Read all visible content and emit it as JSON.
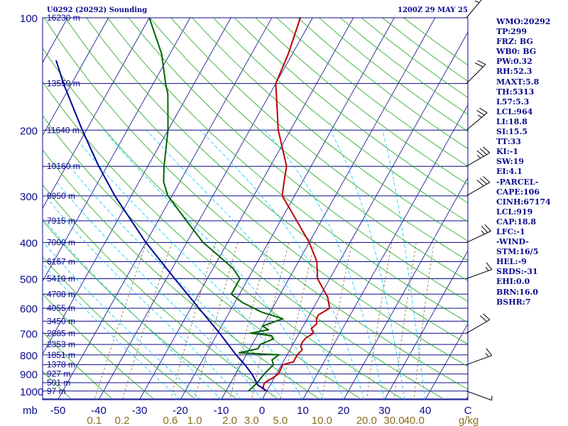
{
  "header": {
    "title": "U0292 (20292) Sounding",
    "time": "1200Z 29 MAY 25"
  },
  "stats": [
    "WMO:20292",
    "TP:299",
    "FRZ: BG",
    "WB0: BG",
    "PW:0.32",
    "RH:52.3",
    "MAXT:5.8",
    "TH:5313",
    "L57:5.3",
    "LCL:964",
    "LI:18.8",
    "SI:15.5",
    "TT:33",
    "KI:-1",
    "SW:19",
    "EI:4.1",
    "-PARCEL-",
    "CAPE:106",
    "CINH:67174",
    "LCL:919",
    "CAP:18.8",
    "LFC:-1",
    "-WIND-",
    "STM:16/5",
    "HEL:-9",
    "SRDS:-31",
    "EHI:0.0",
    "BRN:16.0",
    "BSHR:7"
  ],
  "chart_data": {
    "type": "line",
    "diagram": "skew-T log-P",
    "unit_label": "mb",
    "pressure_ticks": [
      100,
      200,
      300,
      400,
      500,
      600,
      700,
      800,
      900,
      1000
    ],
    "height_labels": [
      {
        "p": 100,
        "label": "16230 m"
      },
      {
        "p": 150,
        "label": "13550 m"
      },
      {
        "p": 200,
        "label": "11640 m"
      },
      {
        "p": 250,
        "label": "10160 m"
      },
      {
        "p": 300,
        "label": "8950 m"
      },
      {
        "p": 350,
        "label": "7915 m"
      },
      {
        "p": 400,
        "label": "7000 m"
      },
      {
        "p": 450,
        "label": "6167 m"
      },
      {
        "p": 500,
        "label": "5410 m"
      },
      {
        "p": 550,
        "label": "4708 m"
      },
      {
        "p": 600,
        "label": "4055 m"
      },
      {
        "p": 650,
        "label": "3450 m"
      },
      {
        "p": 700,
        "label": "2885 m"
      },
      {
        "p": 750,
        "label": "2353 m"
      },
      {
        "p": 800,
        "label": "1851 m"
      },
      {
        "p": 850,
        "label": "1378 m"
      },
      {
        "p": 900,
        "label": "927 m"
      },
      {
        "p": 950,
        "label": "501 m"
      },
      {
        "p": 1000,
        "label": "97 m"
      }
    ],
    "temp_ticks": [
      -50,
      -40,
      -30,
      -20,
      -10,
      0,
      10,
      20,
      30,
      40
    ],
    "mixing_ratio_ticks": [
      "0.1",
      "0.2",
      "0.6",
      "1.0",
      "2.0",
      "3.0",
      "5.0",
      "10.0",
      "20.0",
      "30.0",
      "40.0"
    ],
    "mixing_ratio_values": [
      0.1,
      0.2,
      0.6,
      1.0,
      2.0,
      3.0,
      5.0,
      10.0,
      20.0,
      30.0,
      40.0
    ],
    "x_end_label": "C",
    "mixing_ratio_unit": "g/kg",
    "series": [
      {
        "role": "temperature",
        "color": "#c00000",
        "points": [
          [
            1000,
            -0.5
          ],
          [
            975,
            -1.5
          ],
          [
            950,
            -1.7
          ],
          [
            925,
            -0.5
          ],
          [
            900,
            0.5
          ],
          [
            850,
            0.3
          ],
          [
            835,
            2.5
          ],
          [
            800,
            2.5
          ],
          [
            775,
            3.0
          ],
          [
            760,
            2.2
          ],
          [
            740,
            2.0
          ],
          [
            720,
            2.3
          ],
          [
            700,
            3.5
          ],
          [
            680,
            2.3
          ],
          [
            660,
            3.0
          ],
          [
            640,
            2.2
          ],
          [
            625,
            2.2
          ],
          [
            600,
            4.0
          ],
          [
            560,
            2.0
          ],
          [
            500,
            -3.0
          ],
          [
            450,
            -5.5
          ],
          [
            400,
            -10.0
          ],
          [
            350,
            -16.0
          ],
          [
            300,
            -23.0
          ],
          [
            275,
            -24.5
          ],
          [
            250,
            -26.0
          ],
          [
            200,
            -33.0
          ],
          [
            150,
            -40.0
          ],
          [
            125,
            -41.0
          ],
          [
            100,
            -43.0
          ]
        ]
      },
      {
        "role": "dewpoint",
        "color": "#006400",
        "points": [
          [
            1000,
            -4.5
          ],
          [
            950,
            -3.5
          ],
          [
            900,
            -3.0
          ],
          [
            850,
            -2.0
          ],
          [
            825,
            -3.0
          ],
          [
            800,
            -2.0
          ],
          [
            790,
            -12.0
          ],
          [
            770,
            -8.0
          ],
          [
            750,
            -8.0
          ],
          [
            725,
            -5.5
          ],
          [
            710,
            -6.5
          ],
          [
            700,
            -12.0
          ],
          [
            685,
            -8.0
          ],
          [
            670,
            -10.0
          ],
          [
            640,
            -6.0
          ],
          [
            615,
            -12.0
          ],
          [
            580,
            -18.0
          ],
          [
            550,
            -22.0
          ],
          [
            500,
            -22.0
          ],
          [
            470,
            -25.0
          ],
          [
            430,
            -31.0
          ],
          [
            400,
            -36.0
          ],
          [
            350,
            -43.0
          ],
          [
            300,
            -51.0
          ],
          [
            275,
            -54.0
          ],
          [
            250,
            -56.0
          ],
          [
            200,
            -60.0
          ],
          [
            160,
            -65.0
          ],
          [
            150,
            -67.0
          ],
          [
            125,
            -72.0
          ],
          [
            100,
            -80.0
          ]
        ]
      },
      {
        "role": "parcel",
        "color": "#00009c",
        "points": [
          [
            1000,
            0.0
          ],
          [
            964,
            -3.0
          ],
          [
            900,
            -6.0
          ],
          [
            850,
            -9.0
          ],
          [
            800,
            -12.5
          ],
          [
            700,
            -19.5
          ],
          [
            600,
            -28.0
          ],
          [
            500,
            -38.0
          ],
          [
            400,
            -50.0
          ],
          [
            300,
            -64.0
          ],
          [
            250,
            -72.0
          ],
          [
            200,
            -81.0
          ],
          [
            150,
            -92.0
          ],
          [
            130,
            -97.0
          ]
        ]
      }
    ],
    "wind_barbs": [
      {
        "p": 1000,
        "dir": 290,
        "spd": 5
      },
      {
        "p": 850,
        "dir": 250,
        "spd": 15
      },
      {
        "p": 700,
        "dir": 240,
        "spd": 20
      },
      {
        "p": 500,
        "dir": 250,
        "spd": 15
      },
      {
        "p": 400,
        "dir": 245,
        "spd": 25
      },
      {
        "p": 300,
        "dir": 240,
        "spd": 30
      },
      {
        "p": 250,
        "dir": 240,
        "spd": 35
      },
      {
        "p": 200,
        "dir": 230,
        "spd": 25
      },
      {
        "p": 150,
        "dir": 225,
        "spd": 20
      },
      {
        "p": 100,
        "dir": 220,
        "spd": 25
      }
    ],
    "colors": {
      "isobar": "#0a0a8c",
      "isotherm": "#0a0a8c",
      "dry_adiabat": "#1aa51a",
      "moist_adiabat": "#00c8ff",
      "mixing_ratio": "#8c6e32",
      "frame": "#0a0a8c",
      "temp_axis": "#0a0a8c",
      "mixing_axis": "#8c6e1e"
    }
  }
}
